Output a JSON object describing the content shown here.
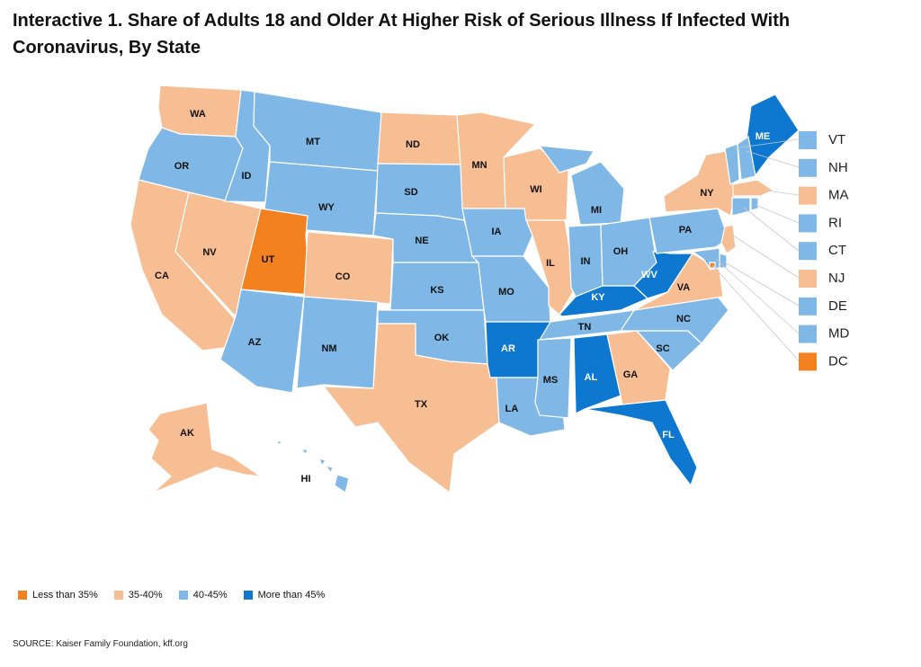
{
  "title": "Interactive 1. Share of Adults 18 and Older At Higher Risk of Serious Illness If Infected With Coronavirus, By State",
  "colors": {
    "lt35": "#f4811f",
    "35_40": "#f8be93",
    "40_45": "#7fb8e6",
    "gt45": "#0e77d0"
  },
  "legend": [
    {
      "label": "Less than 35%",
      "category": "lt35"
    },
    {
      "label": "35-40%",
      "category": "35_40"
    },
    {
      "label": "40-45%",
      "category": "40_45"
    },
    {
      "label": "More than 45%",
      "category": "gt45"
    }
  ],
  "states": {
    "WA": "35_40",
    "OR": "40_45",
    "CA": "35_40",
    "NV": "35_40",
    "ID": "40_45",
    "MT": "40_45",
    "WY": "40_45",
    "UT": "lt35",
    "CO": "35_40",
    "AZ": "40_45",
    "NM": "40_45",
    "ND": "35_40",
    "SD": "40_45",
    "NE": "40_45",
    "KS": "40_45",
    "OK": "40_45",
    "TX": "35_40",
    "MN": "35_40",
    "IA": "40_45",
    "MO": "40_45",
    "AR": "gt45",
    "LA": "40_45",
    "WI": "35_40",
    "IL": "35_40",
    "MI": "40_45",
    "IN": "40_45",
    "OH": "40_45",
    "KY": "gt45",
    "TN": "40_45",
    "MS": "40_45",
    "AL": "gt45",
    "GA": "35_40",
    "FL": "gt45",
    "SC": "40_45",
    "NC": "40_45",
    "VA": "35_40",
    "WV": "gt45",
    "PA": "40_45",
    "NY": "35_40",
    "ME": "gt45",
    "AK": "35_40",
    "HI": "40_45",
    "VT": "40_45",
    "NH": "40_45",
    "MA": "35_40",
    "RI": "40_45",
    "CT": "40_45",
    "NJ": "35_40",
    "DE": "40_45",
    "MD": "40_45",
    "DC": "lt35"
  },
  "callouts": [
    "VT",
    "NH",
    "MA",
    "RI",
    "CT",
    "NJ",
    "DE",
    "MD",
    "DC"
  ],
  "source": "SOURCE: Kaiser Family Foundation, kff.org"
}
